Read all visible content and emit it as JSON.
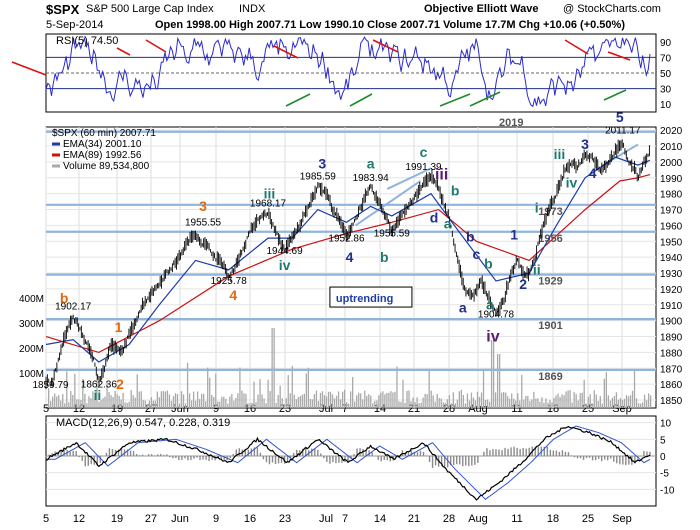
{
  "header": {
    "symbol": "$SPX",
    "name": "S&P 500 Large Cap Index",
    "exchange": "INDX",
    "source": "Objective Elliott Wave",
    "watermark": "@ StockCharts.com",
    "date": "5-Sep-2014",
    "quote": "Open 1998.00  High 2007.71  Low 1990.10  Close 2007.71  Volume 17.7M  Chg +10.06 (+0.50%)"
  },
  "chart_data": [
    {
      "type": "line",
      "panel": "rsi",
      "legend": "RSI(5) 74.50",
      "ylim": [
        0,
        100
      ],
      "y_ticks": [
        "10",
        "30",
        "50",
        "70",
        "90"
      ],
      "reference_lines": [
        30,
        50,
        70
      ],
      "series": [
        {
          "name": "RSI(5)",
          "color": "#2b2bcc",
          "last": 74.5
        }
      ]
    },
    {
      "type": "line",
      "panel": "price",
      "title": "$SPX (60 min) 2007.71",
      "legend": [
        "EMA(34) 2001.10",
        "EMA(89) 1992.56",
        "Volume 89,534,800"
      ],
      "ylim": [
        1845,
        2022
      ],
      "y_ticks": [
        "1850",
        "1860",
        "1870",
        "1880",
        "1890",
        "1900",
        "1910",
        "1920",
        "1930",
        "1940",
        "1950",
        "1960",
        "1970",
        "1980",
        "1990",
        "2000",
        "2010",
        "2020"
      ],
      "volume_ticks": [
        "100M",
        "200M",
        "300M",
        "400M"
      ],
      "support_levels": [
        {
          "value": 2019,
          "label": "2019"
        },
        {
          "value": 1973,
          "label": "1973"
        },
        {
          "value": 1956,
          "label": "1956"
        },
        {
          "value": 1929,
          "label": "1929"
        },
        {
          "value": 1901,
          "label": "1901"
        },
        {
          "value": 1869,
          "label": "1869"
        }
      ],
      "x_tick_labels": [
        "5",
        "12",
        "19",
        "27",
        "Jun",
        "9",
        "16",
        "23",
        "Jul",
        "7",
        "14",
        "21",
        "28",
        "Aug",
        "11",
        "18",
        "25",
        "Sep"
      ],
      "price_path": [
        [
          0,
          1862
        ],
        [
          4,
          1860
        ],
        [
          9,
          1878
        ],
        [
          14,
          1895
        ],
        [
          18,
          1902
        ],
        [
          22,
          1896
        ],
        [
          27,
          1885
        ],
        [
          32,
          1875
        ],
        [
          35,
          1862
        ],
        [
          38,
          1868
        ],
        [
          43,
          1885
        ],
        [
          50,
          1880
        ],
        [
          57,
          1895
        ],
        [
          64,
          1910
        ],
        [
          72,
          1920
        ],
        [
          80,
          1930
        ],
        [
          87,
          1938
        ],
        [
          94,
          1950
        ],
        [
          99,
          1955
        ],
        [
          103,
          1949
        ],
        [
          107,
          1947
        ],
        [
          112,
          1940
        ],
        [
          118,
          1935
        ],
        [
          121,
          1926
        ],
        [
          125,
          1934
        ],
        [
          131,
          1946
        ],
        [
          136,
          1958
        ],
        [
          143,
          1966
        ],
        [
          147,
          1968
        ],
        [
          151,
          1958
        ],
        [
          155,
          1950
        ],
        [
          158,
          1945
        ],
        [
          163,
          1952
        ],
        [
          168,
          1960
        ],
        [
          175,
          1975
        ],
        [
          180,
          1985
        ],
        [
          186,
          1980
        ],
        [
          190,
          1970
        ],
        [
          195,
          1962
        ],
        [
          199,
          1953
        ],
        [
          204,
          1962
        ],
        [
          210,
          1975
        ],
        [
          215,
          1984
        ],
        [
          220,
          1975
        ],
        [
          225,
          1966
        ],
        [
          229,
          1956
        ],
        [
          234,
          1965
        ],
        [
          240,
          1972
        ],
        [
          246,
          1980
        ],
        [
          251,
          1988
        ],
        [
          255,
          1991
        ],
        [
          259,
          1985
        ],
        [
          263,
          1975
        ],
        [
          267,
          1965
        ],
        [
          272,
          1940
        ],
        [
          278,
          1918
        ],
        [
          283,
          1915
        ],
        [
          288,
          1925
        ],
        [
          293,
          1915
        ],
        [
          298,
          1905
        ],
        [
          303,
          1912
        ],
        [
          308,
          1930
        ],
        [
          312,
          1938
        ],
        [
          316,
          1930
        ],
        [
          320,
          1930
        ],
        [
          324,
          1940
        ],
        [
          328,
          1956
        ],
        [
          333,
          1970
        ],
        [
          338,
          1980
        ],
        [
          343,
          1993
        ],
        [
          348,
          2000
        ],
        [
          352,
          1997
        ],
        [
          357,
          2005
        ],
        [
          362,
          2003
        ],
        [
          367,
          1995
        ],
        [
          372,
          1999
        ],
        [
          377,
          2007
        ],
        [
          382,
          2011
        ],
        [
          386,
          2000
        ],
        [
          390,
          1995
        ],
        [
          392,
          1990
        ],
        [
          396,
          2000
        ],
        [
          400,
          2007
        ]
      ],
      "ema34_path": [
        [
          0,
          1885
        ],
        [
          18,
          1888
        ],
        [
          35,
          1874
        ],
        [
          55,
          1885
        ],
        [
          75,
          1910
        ],
        [
          99,
          1938
        ],
        [
          121,
          1932
        ],
        [
          147,
          1952
        ],
        [
          163,
          1952
        ],
        [
          180,
          1970
        ],
        [
          199,
          1962
        ],
        [
          215,
          1972
        ],
        [
          229,
          1966
        ],
        [
          255,
          1980
        ],
        [
          272,
          1958
        ],
        [
          298,
          1925
        ],
        [
          320,
          1930
        ],
        [
          338,
          1960
        ],
        [
          357,
          1990
        ],
        [
          377,
          2003
        ],
        [
          392,
          1998
        ],
        [
          400,
          2001
        ]
      ],
      "ema89_path": [
        [
          0,
          1890
        ],
        [
          35,
          1880
        ],
        [
          75,
          1900
        ],
        [
          121,
          1928
        ],
        [
          163,
          1945
        ],
        [
          199,
          1955
        ],
        [
          229,
          1962
        ],
        [
          260,
          1970
        ],
        [
          285,
          1950
        ],
        [
          320,
          1938
        ],
        [
          357,
          1970
        ],
        [
          380,
          1988
        ],
        [
          392,
          1990
        ],
        [
          400,
          1992
        ]
      ],
      "annotations": [
        {
          "text": "1859.79",
          "kind": "price",
          "x": 3,
          "y": 1857.5
        },
        {
          "text": "b",
          "kind": "wave-orange",
          "x": 12,
          "y": 1911
        },
        {
          "text": "1902.17",
          "kind": "price",
          "x": 18,
          "y": 1907
        },
        {
          "text": "1",
          "kind": "wave-orange",
          "x": 48,
          "y": 1893
        },
        {
          "text": "1862.36",
          "kind": "price",
          "x": 35,
          "y": 1858
        },
        {
          "text": "ii",
          "kind": "wave-teal",
          "x": 34,
          "y": 1850
        },
        {
          "text": "2",
          "kind": "wave-orange",
          "x": 49,
          "y": 1857
        },
        {
          "text": "3",
          "kind": "wave-orange",
          "x": 104,
          "y": 1969
        },
        {
          "text": "1955.55",
          "kind": "price",
          "x": 104,
          "y": 1960
        },
        {
          "text": "1925.78",
          "kind": "price",
          "x": 121,
          "y": 1923
        },
        {
          "text": "4",
          "kind": "wave-orange",
          "x": 124,
          "y": 1913
        },
        {
          "text": "iii",
          "kind": "wave-teal",
          "x": 148,
          "y": 1977
        },
        {
          "text": "1968.17",
          "kind": "price",
          "x": 147,
          "y": 1972
        },
        {
          "text": "1944.69",
          "kind": "price",
          "x": 158,
          "y": 1942
        },
        {
          "text": "iv",
          "kind": "wave-teal",
          "x": 158,
          "y": 1932
        },
        {
          "text": "3",
          "kind": "wave-navy",
          "x": 183,
          "y": 1996
        },
        {
          "text": "1985.59",
          "kind": "price",
          "x": 180,
          "y": 1989
        },
        {
          "text": "1952.86",
          "kind": "price",
          "x": 199,
          "y": 1950
        },
        {
          "text": "4",
          "kind": "wave-navy",
          "x": 201,
          "y": 1937
        },
        {
          "text": "a",
          "kind": "wave-teal",
          "x": 215,
          "y": 1996
        },
        {
          "text": "1983.94",
          "kind": "price",
          "x": 215,
          "y": 1988
        },
        {
          "text": "1955.59",
          "kind": "price",
          "x": 229,
          "y": 1953
        },
        {
          "text": "b",
          "kind": "wave-teal",
          "x": 224,
          "y": 1937
        },
        {
          "text": "c",
          "kind": "wave-teal",
          "x": 250,
          "y": 2003
        },
        {
          "text": "1991.39",
          "kind": "price",
          "x": 250,
          "y": 1995
        },
        {
          "text": "iii",
          "kind": "wave-purple",
          "x": 262,
          "y": 1989
        },
        {
          "text": "b",
          "kind": "wave-teal",
          "x": 271,
          "y": 1979
        },
        {
          "text": "d",
          "kind": "wave-navy",
          "x": 257,
          "y": 1962
        },
        {
          "text": "a",
          "kind": "wave-teal",
          "x": 266,
          "y": 1958
        },
        {
          "text": "b",
          "kind": "wave-navy",
          "x": 281,
          "y": 1950
        },
        {
          "text": "c",
          "kind": "wave-navy",
          "x": 285,
          "y": 1939
        },
        {
          "text": "b",
          "kind": "wave-teal",
          "x": 293,
          "y": 1933
        },
        {
          "text": "a",
          "kind": "wave-navy",
          "x": 276,
          "y": 1905
        },
        {
          "text": "a",
          "kind": "wave-teal",
          "x": 294,
          "y": 1907
        },
        {
          "text": "1904.78",
          "kind": "price",
          "x": 298,
          "y": 1902
        },
        {
          "text": "iv",
          "kind": "wave-purple",
          "x": 296,
          "y": 1887
        },
        {
          "text": "1",
          "kind": "wave-navy",
          "x": 310,
          "y": 1951
        },
        {
          "text": "2",
          "kind": "wave-navy",
          "x": 316,
          "y": 1920
        },
        {
          "text": "i",
          "kind": "wave-teal",
          "x": 325,
          "y": 1968
        },
        {
          "text": "ii",
          "kind": "wave-teal",
          "x": 325,
          "y": 1929
        },
        {
          "text": "iii",
          "kind": "wave-teal",
          "x": 340,
          "y": 2002
        },
        {
          "text": "3",
          "kind": "wave-navy",
          "x": 357,
          "y": 2008
        },
        {
          "text": "iv",
          "kind": "wave-teal",
          "x": 348,
          "y": 1984
        },
        {
          "text": "4",
          "kind": "wave-navy",
          "x": 362,
          "y": 1990
        },
        {
          "text": "5",
          "kind": "wave-navy",
          "x": 380,
          "y": 2025
        },
        {
          "text": "2011.17",
          "kind": "price",
          "x": 382,
          "y": 2018
        },
        {
          "text": "uptrending",
          "kind": "boxed",
          "x": 192,
          "y": 1913
        }
      ]
    },
    {
      "type": "line",
      "panel": "macd",
      "legend": "MACD(12,26,9) 0.547, 0.228, 0.319",
      "ylim": [
        -15,
        12
      ],
      "y_ticks": [
        "-10",
        "-5",
        "0",
        "5",
        "10"
      ],
      "series": [
        {
          "name": "MACD(12,26,9)",
          "value": 0.547,
          "color": "#000000"
        },
        {
          "name": "Signal",
          "value": 0.228,
          "color": "#3355cc"
        },
        {
          "name": "Histogram",
          "value": 0.319,
          "color": "#808080"
        }
      ],
      "x_tick_labels": [
        "5",
        "12",
        "19",
        "27",
        "Jun",
        "9",
        "16",
        "23",
        "Jul",
        "7",
        "14",
        "21",
        "28",
        "Aug",
        "11",
        "18",
        "25",
        "Sep"
      ]
    }
  ]
}
